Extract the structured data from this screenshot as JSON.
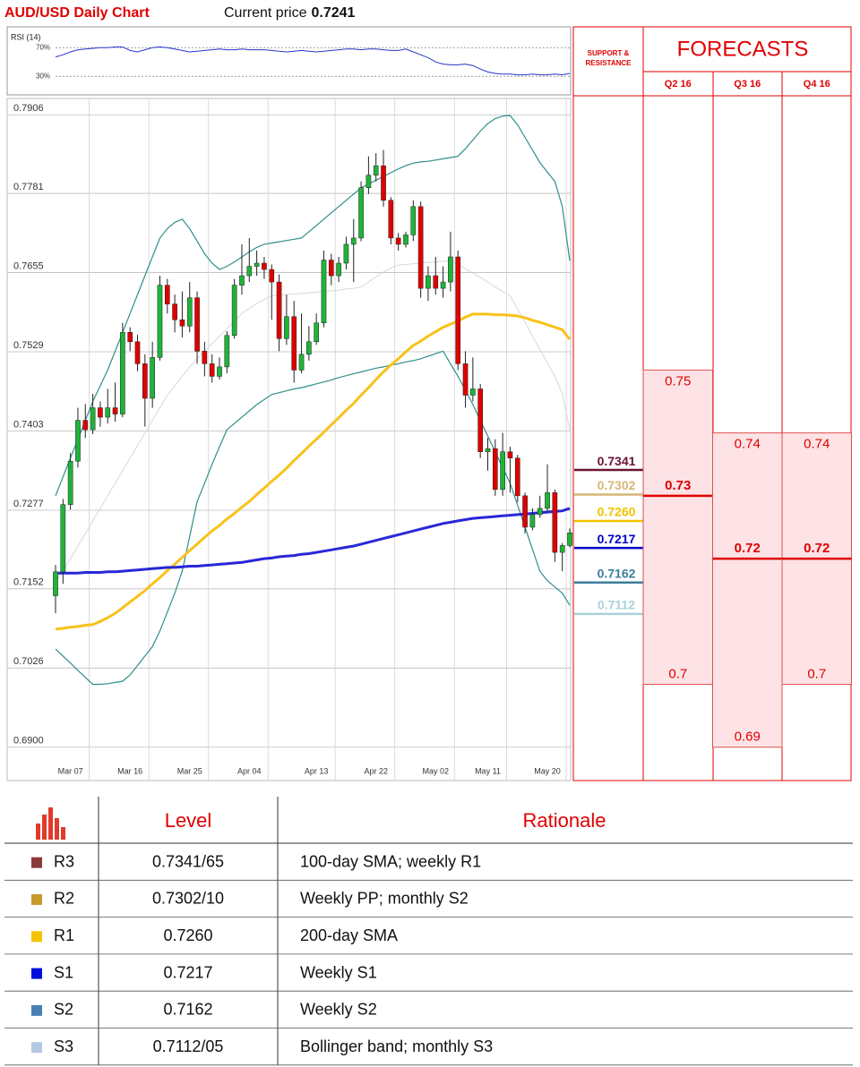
{
  "header": {
    "title": "AUD/USD Daily Chart",
    "price_label": "Current price",
    "price": "0.7241"
  },
  "chart_data": [
    {
      "type": "line",
      "title": "RSI (14)",
      "color": "#2535c8",
      "values": [
        57,
        60,
        64,
        67,
        68,
        69,
        70,
        70,
        71,
        71,
        66,
        64,
        67,
        70,
        71,
        70,
        68,
        66,
        64,
        65,
        66,
        67,
        68,
        67,
        67,
        68,
        67,
        67,
        67,
        66,
        65,
        64,
        65,
        66,
        65,
        64,
        65,
        66,
        67,
        68,
        68,
        67,
        68,
        68,
        67,
        66,
        66,
        68,
        64,
        60,
        56,
        50,
        47,
        46,
        46,
        47,
        45,
        40,
        36,
        34,
        33,
        33,
        32,
        32,
        33,
        32,
        32,
        33,
        32,
        34
      ],
      "ylim": [
        4,
        99
      ],
      "yticks": [
        {
          "value": 70,
          "label": "70%"
        },
        {
          "value": 30,
          "label": "30%"
        }
      ]
    },
    {
      "type": "candlestick",
      "up_color": "#1fb33a",
      "down_color": "#e00000",
      "grid": true,
      "categories": [
        null,
        null,
        "Mar 07",
        null,
        null,
        null,
        null,
        null,
        null,
        null,
        "Mar 16",
        null,
        null,
        null,
        null,
        null,
        null,
        null,
        "Mar 25",
        null,
        null,
        null,
        null,
        null,
        null,
        null,
        "Apr 04",
        null,
        null,
        null,
        null,
        null,
        null,
        null,
        null,
        "Apr 13",
        null,
        null,
        null,
        null,
        null,
        null,
        null,
        "Apr 22",
        null,
        null,
        null,
        null,
        null,
        null,
        null,
        "May 02",
        null,
        null,
        null,
        null,
        null,
        null,
        "May 11",
        null,
        null,
        null,
        null,
        null,
        null,
        null,
        "May 20",
        null,
        null,
        null
      ],
      "open": [
        0.7141,
        0.7179,
        0.7286,
        0.7355,
        0.742,
        0.7405,
        0.744,
        0.7425,
        0.744,
        0.743,
        0.756,
        0.7545,
        0.751,
        0.7455,
        0.752,
        0.7635,
        0.7605,
        0.758,
        0.757,
        0.7615,
        0.753,
        0.751,
        0.749,
        0.7505,
        0.7555,
        0.7635,
        0.765,
        0.7665,
        0.767,
        0.766,
        0.764,
        0.755,
        0.7585,
        0.75,
        0.7525,
        0.7545,
        0.7575,
        0.7675,
        0.765,
        0.767,
        0.77,
        0.771,
        0.779,
        0.781,
        0.7825,
        0.777,
        0.771,
        0.77,
        0.7715,
        0.776,
        0.763,
        0.765,
        0.763,
        0.764,
        0.768,
        0.751,
        0.746,
        0.747,
        0.737,
        0.7375,
        0.731,
        0.737,
        0.736,
        0.73,
        0.725,
        0.727,
        0.728,
        0.7305,
        0.721,
        0.7221
      ],
      "high": [
        0.719,
        0.7295,
        0.7368,
        0.744,
        0.7446,
        0.7462,
        0.745,
        0.747,
        0.748,
        0.7575,
        0.7568,
        0.7556,
        0.7525,
        0.7545,
        0.765,
        0.7645,
        0.762,
        0.7625,
        0.764,
        0.7625,
        0.7545,
        0.7525,
        0.752,
        0.7562,
        0.7645,
        0.77,
        0.771,
        0.769,
        0.768,
        0.7668,
        0.7652,
        0.762,
        0.761,
        0.759,
        0.757,
        0.759,
        0.769,
        0.7685,
        0.768,
        0.7712,
        0.774,
        0.78,
        0.784,
        0.7845,
        0.785,
        0.7775,
        0.7718,
        0.772,
        0.777,
        0.7768,
        0.7665,
        0.768,
        0.7665,
        0.772,
        0.769,
        0.753,
        0.752,
        0.7478,
        0.7392,
        0.739,
        0.74,
        0.7378,
        0.7365,
        0.7305,
        0.728,
        0.73,
        0.735,
        0.731,
        0.7225,
        0.7248
      ],
      "low": [
        0.7113,
        0.716,
        0.7278,
        0.7345,
        0.7392,
        0.7398,
        0.741,
        0.7415,
        0.7418,
        0.7425,
        0.753,
        0.7498,
        0.741,
        0.744,
        0.7515,
        0.759,
        0.756,
        0.7552,
        0.756,
        0.751,
        0.749,
        0.748,
        0.7485,
        0.7495,
        0.755,
        0.762,
        0.764,
        0.765,
        0.7645,
        0.758,
        0.753,
        0.754,
        0.748,
        0.7495,
        0.7515,
        0.754,
        0.7568,
        0.7635,
        0.764,
        0.766,
        0.764,
        0.7705,
        0.778,
        0.78,
        0.776,
        0.77,
        0.769,
        0.7695,
        0.7705,
        0.7615,
        0.761,
        0.762,
        0.7615,
        0.7625,
        0.75,
        0.744,
        0.745,
        0.736,
        0.734,
        0.73,
        0.73,
        0.7305,
        0.729,
        0.724,
        0.7245,
        0.7265,
        0.7275,
        0.7195,
        0.718,
        0.7218
      ],
      "close": [
        0.7179,
        0.7286,
        0.7355,
        0.742,
        0.7405,
        0.744,
        0.7425,
        0.744,
        0.743,
        0.756,
        0.7545,
        0.751,
        0.7455,
        0.752,
        0.7635,
        0.7605,
        0.758,
        0.757,
        0.7615,
        0.753,
        0.751,
        0.749,
        0.7505,
        0.7555,
        0.7635,
        0.765,
        0.7665,
        0.767,
        0.766,
        0.764,
        0.755,
        0.7585,
        0.75,
        0.7525,
        0.7545,
        0.7575,
        0.7675,
        0.765,
        0.767,
        0.77,
        0.771,
        0.779,
        0.781,
        0.7825,
        0.777,
        0.771,
        0.77,
        0.7715,
        0.776,
        0.763,
        0.765,
        0.763,
        0.764,
        0.768,
        0.751,
        0.746,
        0.747,
        0.737,
        0.7375,
        0.731,
        0.737,
        0.736,
        0.73,
        0.725,
        0.727,
        0.728,
        0.7305,
        0.721,
        0.7221,
        0.7241
      ],
      "overlays": [
        {
          "color": "#d8d8d8",
          "width": 1,
          "values": [
            0.7163,
            0.718,
            0.72,
            0.722,
            0.724,
            0.726,
            0.728,
            0.73,
            0.732,
            0.734,
            0.736,
            0.738,
            0.74,
            0.742,
            0.744,
            0.746,
            0.7475,
            0.749,
            0.7505,
            0.7518,
            0.753,
            0.7542,
            0.7554,
            0.7566,
            0.7578,
            0.759,
            0.7598,
            0.7606,
            0.7612,
            0.7618,
            0.7619,
            0.762,
            0.7621,
            0.7622,
            0.7623,
            0.7624,
            0.7625,
            0.7626,
            0.7627,
            0.7629,
            0.763,
            0.7632,
            0.764,
            0.7648,
            0.7656,
            0.7662,
            0.7667,
            0.7668,
            0.7669,
            0.767,
            0.7671,
            0.7672,
            0.7673,
            0.7674,
            0.7668,
            0.7661,
            0.7654,
            0.7647,
            0.764,
            0.7632,
            0.7625,
            0.7618,
            0.7597,
            0.7576,
            0.7554,
            0.7533,
            0.7511,
            0.749,
            0.7462,
            0.7405
          ]
        },
        {
          "color": "#2f8f8a",
          "width": 1.2,
          "values": [
            0.73,
            0.733,
            0.736,
            0.739,
            0.742,
            0.745,
            0.7475,
            0.75,
            0.753,
            0.756,
            0.759,
            0.762,
            0.765,
            0.768,
            0.771,
            0.7725,
            0.7735,
            0.774,
            0.7725,
            0.7705,
            0.7685,
            0.767,
            0.766,
            0.7665,
            0.7672,
            0.768,
            0.7688,
            0.7695,
            0.77,
            0.7702,
            0.7704,
            0.7706,
            0.7708,
            0.771,
            0.772,
            0.773,
            0.774,
            0.775,
            0.776,
            0.777,
            0.778,
            0.779,
            0.7796,
            0.7802,
            0.7808,
            0.7814,
            0.782,
            0.7825,
            0.7829,
            0.7831,
            0.7832,
            0.7834,
            0.7836,
            0.7838,
            0.784,
            0.7852,
            0.7866,
            0.788,
            0.7892,
            0.79,
            0.7904,
            0.7905,
            0.789,
            0.787,
            0.785,
            0.783,
            0.7815,
            0.78,
            0.776,
            0.7674
          ]
        },
        {
          "color": "#2f8f8a",
          "width": 1.2,
          "values": [
            0.7056,
            0.7045,
            0.7034,
            0.7022,
            0.7011,
            0.7,
            0.7,
            0.7001,
            0.7003,
            0.7005,
            0.7015,
            0.703,
            0.7045,
            0.706,
            0.7085,
            0.7115,
            0.7145,
            0.718,
            0.7235,
            0.7291,
            0.732,
            0.735,
            0.7378,
            0.7405,
            0.7415,
            0.7425,
            0.7435,
            0.7445,
            0.7453,
            0.7461,
            0.7464,
            0.7467,
            0.747,
            0.7472,
            0.7475,
            0.7478,
            0.7481,
            0.7484,
            0.7488,
            0.7491,
            0.7494,
            0.7497,
            0.75,
            0.7503,
            0.7505,
            0.7508,
            0.751,
            0.7513,
            0.7515,
            0.7518,
            0.7522,
            0.7526,
            0.753,
            0.751,
            0.749,
            0.7468,
            0.7445,
            0.742,
            0.7395,
            0.737,
            0.7345,
            0.732,
            0.7285,
            0.725,
            0.7215,
            0.718,
            0.7165,
            0.7155,
            0.7145,
            0.7126
          ]
        },
        {
          "color": "#f7c21a",
          "width": 3,
          "values": [
            0.7088,
            0.7089,
            0.7091,
            0.7092,
            0.7094,
            0.7095,
            0.71,
            0.7106,
            0.7113,
            0.7122,
            0.7131,
            0.714,
            0.7149,
            0.716,
            0.717,
            0.7181,
            0.7191,
            0.7202,
            0.7213,
            0.7223,
            0.7234,
            0.7244,
            0.7253,
            0.7263,
            0.7272,
            0.7282,
            0.7291,
            0.7302,
            0.7312,
            0.7323,
            0.7333,
            0.7344,
            0.7356,
            0.7367,
            0.7379,
            0.739,
            0.7401,
            0.7413,
            0.7424,
            0.7436,
            0.7447,
            0.746,
            0.7472,
            0.7485,
            0.7497,
            0.7508,
            0.7518,
            0.7529,
            0.7539,
            0.7546,
            0.7554,
            0.7561,
            0.7568,
            0.7573,
            0.7578,
            0.7584,
            0.7589,
            0.7589,
            0.7589,
            0.7588,
            0.7588,
            0.7587,
            0.7586,
            0.7583,
            0.7579,
            0.7576,
            0.7572,
            0.7568,
            0.7564,
            0.7549
          ]
        },
        {
          "color": "#2828d8",
          "width": 3,
          "values": [
            0.7177,
            0.7177,
            0.7177,
            0.7177,
            0.7178,
            0.7178,
            0.7178,
            0.7179,
            0.7179,
            0.718,
            0.7181,
            0.7182,
            0.7183,
            0.7184,
            0.7185,
            0.7186,
            0.7186,
            0.7187,
            0.7188,
            0.7188,
            0.7189,
            0.719,
            0.7191,
            0.7192,
            0.7193,
            0.7194,
            0.7196,
            0.7198,
            0.72,
            0.7201,
            0.7203,
            0.7204,
            0.7205,
            0.7207,
            0.7208,
            0.721,
            0.7212,
            0.7214,
            0.7216,
            0.7218,
            0.722,
            0.7223,
            0.7226,
            0.7229,
            0.7232,
            0.7235,
            0.7238,
            0.7241,
            0.7244,
            0.7247,
            0.725,
            0.7253,
            0.7256,
            0.7258,
            0.726,
            0.7262,
            0.7264,
            0.7265,
            0.7266,
            0.7267,
            0.7268,
            0.7269,
            0.727,
            0.7271,
            0.7272,
            0.7273,
            0.7274,
            0.7275,
            0.7276,
            0.728
          ]
        }
      ],
      "ylim": [
        0.6847,
        0.7932
      ],
      "yticks": [
        0.7906,
        0.7781,
        0.7655,
        0.7529,
        0.7403,
        0.7277,
        0.7152,
        0.7026,
        {
          "value": 0.69,
          "label": "0.6900"
        }
      ]
    }
  ],
  "levels_header": "SUPPORT & RESISTANCE",
  "levels": [
    {
      "value": 0.7341,
      "color": "#6a1236"
    },
    {
      "value": 0.7302,
      "color": "#d6b676"
    },
    {
      "value": 0.726,
      "label": "0.7260",
      "color": "#f2c200"
    },
    {
      "value": 0.7217,
      "color": "#0000c8"
    },
    {
      "value": 0.7162,
      "color": "#3d7d9c"
    },
    {
      "value": 0.7112,
      "color": "#a9d2d8"
    }
  ],
  "forecasts": {
    "title": "FORECASTS",
    "quarters": [
      {
        "name": "Q2 16",
        "high": 0.75,
        "mid": 0.73,
        "low": 0.7
      },
      {
        "name": "Q3 16",
        "high": 0.74,
        "mid": 0.72,
        "low": 0.69
      },
      {
        "name": "Q4 16",
        "high": 0.74,
        "mid": 0.72,
        "low": 0.7
      }
    ]
  },
  "table": {
    "header": [
      "Level",
      "Rationale"
    ],
    "rows": [
      {
        "name": "R3",
        "level": "0.7341/65",
        "rationale": "100-day SMA; weekly R1",
        "color": "#8b3a3a"
      },
      {
        "name": "R2",
        "level": "0.7302/10",
        "rationale": "Weekly PP; monthly S2",
        "color": "#c89a2e"
      },
      {
        "name": "R1",
        "level": "0.7260",
        "rationale": "200-day SMA",
        "color": "#f5c400"
      },
      {
        "name": "S1",
        "level": "0.7217",
        "rationale": "Weekly S1",
        "color": "#0010d8"
      },
      {
        "name": "S2",
        "level": "0.7162",
        "rationale": "Weekly S2",
        "color": "#4a7fb5"
      },
      {
        "name": "S3",
        "level": "0.7112/05",
        "rationale": "Bollinger band; monthly S3",
        "color": "#b4c8e4"
      }
    ]
  }
}
